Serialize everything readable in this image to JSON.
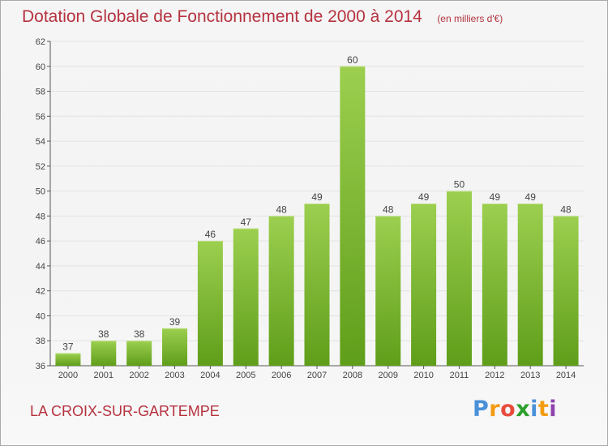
{
  "header": {
    "title": "Dotation Globale de Fonctionnement de 2000 à 2014",
    "subtitle": "(en milliers d'€)"
  },
  "footer": {
    "commune": "LA CROIX-SUR-GARTEMPE",
    "logo": "Proxiti"
  },
  "colors": {
    "title": "#b5333f",
    "bar_top": "#9ccf4f",
    "bar_bottom": "#5f9e1a",
    "grid": "#e2e2e2",
    "axis": "#555555"
  },
  "chart_data": {
    "type": "bar",
    "categories": [
      "2000",
      "2001",
      "2002",
      "2003",
      "2004",
      "2005",
      "2006",
      "2007",
      "2008",
      "2009",
      "2010",
      "2011",
      "2012",
      "2013",
      "2014"
    ],
    "values": [
      37,
      38,
      38,
      39,
      46,
      47,
      48,
      49,
      60,
      48,
      49,
      50,
      49,
      49,
      48
    ],
    "title": "Dotation Globale de Fonctionnement de 2000 à 2014",
    "subtitle": "(en milliers d'€)",
    "ylim": [
      36,
      62
    ],
    "yticks": [
      36,
      38,
      40,
      42,
      44,
      46,
      48,
      50,
      52,
      54,
      56,
      58,
      60,
      62
    ],
    "grid": true,
    "data_labels": true
  }
}
